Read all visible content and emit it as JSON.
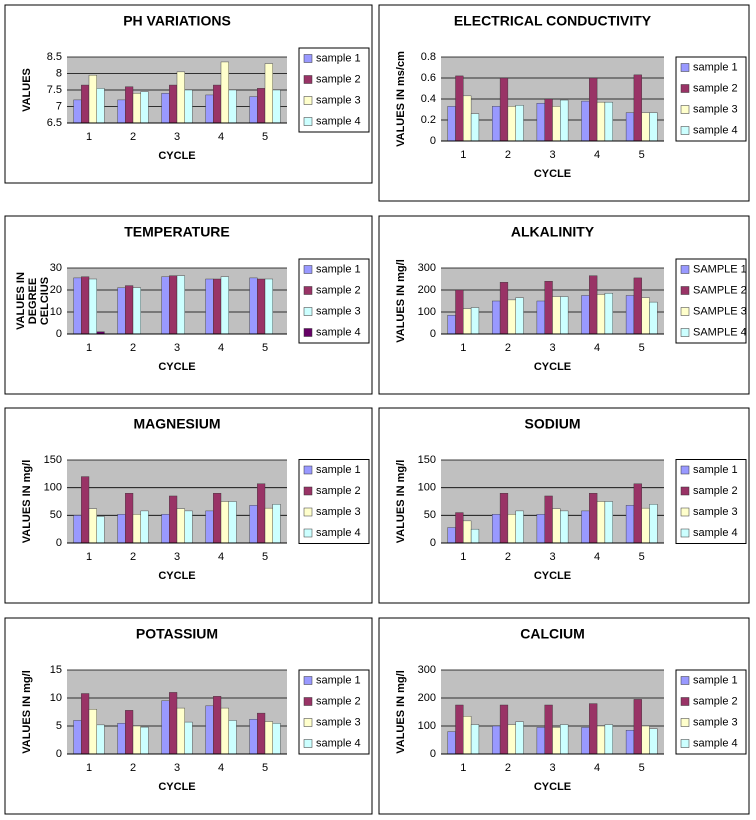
{
  "chart_data": [
    {
      "type": "bar",
      "title": "PH VARIATIONS",
      "ylabel": "VALUES",
      "xlabel": "CYCLE",
      "categories": [
        "1",
        "2",
        "3",
        "4",
        "5"
      ],
      "ylim": [
        6.5,
        8.5
      ],
      "yticks": [
        6.5,
        7,
        7.5,
        8,
        8.5
      ],
      "grid": true,
      "legend": "right",
      "series": [
        {
          "name": "sample 1",
          "color": "#9999ff",
          "values": [
            7.2,
            7.2,
            7.4,
            7.35,
            7.3
          ]
        },
        {
          "name": "sample 2",
          "color": "#993366",
          "values": [
            7.65,
            7.6,
            7.65,
            7.65,
            7.55
          ]
        },
        {
          "name": "sample 3",
          "color": "#ffffcc",
          "values": [
            7.95,
            7.4,
            8.05,
            8.35,
            8.3
          ]
        },
        {
          "name": "sample 4",
          "color": "#ccffff",
          "values": [
            7.55,
            7.45,
            7.5,
            7.5,
            7.5
          ]
        }
      ]
    },
    {
      "type": "bar",
      "title": "ELECTRICAL CONDUCTIVITY",
      "ylabel": "VALUES IN ms/cm",
      "xlabel": "CYCLE",
      "categories": [
        "1",
        "2",
        "3",
        "4",
        "5"
      ],
      "ylim": [
        0,
        0.8
      ],
      "yticks": [
        0,
        0.2,
        0.4,
        0.6,
        0.8
      ],
      "grid": true,
      "legend": "right",
      "series": [
        {
          "name": "sample 1",
          "color": "#9999ff",
          "values": [
            0.33,
            0.33,
            0.36,
            0.38,
            0.27
          ]
        },
        {
          "name": "sample 2",
          "color": "#993366",
          "values": [
            0.62,
            0.6,
            0.4,
            0.6,
            0.63
          ]
        },
        {
          "name": "sample 3",
          "color": "#ffffcc",
          "values": [
            0.43,
            0.33,
            0.33,
            0.37,
            0.27
          ]
        },
        {
          "name": "sample 4",
          "color": "#ccffff",
          "values": [
            0.26,
            0.34,
            0.39,
            0.37,
            0.27
          ]
        }
      ]
    },
    {
      "type": "bar",
      "title": "TEMPERATURE",
      "ylabel": [
        "VALUES IN",
        "DEGREE",
        "CELCIUS"
      ],
      "xlabel": "CYCLE",
      "categories": [
        "1",
        "2",
        "3",
        "4",
        "5"
      ],
      "ylim": [
        0,
        30
      ],
      "yticks": [
        0,
        10,
        20,
        30
      ],
      "grid": true,
      "legend": "right",
      "series": [
        {
          "name": "sample 1",
          "color": "#9999ff",
          "values": [
            25.5,
            21,
            26,
            25,
            25.5
          ]
        },
        {
          "name": "sample 2",
          "color": "#993366",
          "values": [
            26,
            22,
            26.5,
            25,
            25
          ]
        },
        {
          "name": "sample 3",
          "color": "#ccffff",
          "values": [
            25,
            21,
            26.5,
            26,
            25
          ]
        },
        {
          "name": "sample 4",
          "color": "#660066",
          "values": [
            1,
            null,
            null,
            null,
            null
          ]
        }
      ]
    },
    {
      "type": "bar",
      "title": "ALKALINITY",
      "ylabel": "VALUES IN mg/l",
      "xlabel": "CYCLE",
      "categories": [
        "1",
        "2",
        "3",
        "4",
        "5"
      ],
      "ylim": [
        0,
        300
      ],
      "yticks": [
        0,
        100,
        200,
        300
      ],
      "grid": true,
      "legend": "right",
      "series": [
        {
          "name": "SAMPLE 1",
          "color": "#9999ff",
          "values": [
            85,
            150,
            150,
            175,
            175
          ]
        },
        {
          "name": "SAMPLE 2",
          "color": "#993366",
          "values": [
            200,
            235,
            240,
            265,
            255
          ]
        },
        {
          "name": "SAMPLE 3",
          "color": "#ffffcc",
          "values": [
            115,
            155,
            170,
            180,
            165
          ]
        },
        {
          "name": "SAMPLE 4",
          "color": "#ccffff",
          "values": [
            120,
            165,
            170,
            185,
            145
          ]
        }
      ]
    },
    {
      "type": "bar",
      "title": "MAGNESIUM",
      "ylabel": "VALUES IN mg/l",
      "xlabel": "CYCLE",
      "categories": [
        "1",
        "2",
        "3",
        "4",
        "5"
      ],
      "ylim": [
        0,
        150
      ],
      "yticks": [
        0,
        50,
        100,
        150
      ],
      "grid": true,
      "legend": "right",
      "series": [
        {
          "name": "sample 1",
          "color": "#9999ff",
          "values": [
            50,
            52,
            52,
            58,
            68
          ]
        },
        {
          "name": "sample 2",
          "color": "#993366",
          "values": [
            120,
            90,
            85,
            90,
            107
          ]
        },
        {
          "name": "sample 3",
          "color": "#ffffcc",
          "values": [
            62,
            52,
            62,
            75,
            63
          ]
        },
        {
          "name": "sample 4",
          "color": "#ccffff",
          "values": [
            48,
            58,
            58,
            75,
            70
          ]
        }
      ]
    },
    {
      "type": "bar",
      "title": "SODIUM",
      "ylabel": "VALUES IN  mg/l",
      "xlabel": "CYCLE",
      "categories": [
        "1",
        "2",
        "3",
        "4",
        "5"
      ],
      "ylim": [
        0,
        150
      ],
      "yticks": [
        0,
        50,
        100,
        150
      ],
      "grid": true,
      "legend": "right",
      "series": [
        {
          "name": "sample 1",
          "color": "#9999ff",
          "values": [
            28,
            52,
            52,
            58,
            68
          ]
        },
        {
          "name": "sample 2",
          "color": "#993366",
          "values": [
            55,
            90,
            85,
            90,
            107
          ]
        },
        {
          "name": "sample 3",
          "color": "#ffffcc",
          "values": [
            40,
            52,
            62,
            75,
            63
          ]
        },
        {
          "name": "sample 4",
          "color": "#ccffff",
          "values": [
            25,
            58,
            58,
            75,
            70
          ]
        }
      ]
    },
    {
      "type": "bar",
      "title": "POTASSIUM",
      "ylabel": "VALUES IN mg/l",
      "xlabel": "CYCLE",
      "categories": [
        "1",
        "2",
        "3",
        "4",
        "5"
      ],
      "ylim": [
        0,
        15
      ],
      "yticks": [
        0,
        5,
        10,
        15
      ],
      "grid": true,
      "legend": "right",
      "series": [
        {
          "name": "sample 1",
          "color": "#9999ff",
          "values": [
            6,
            5.5,
            9.5,
            8.6,
            6.2
          ]
        },
        {
          "name": "sample 2",
          "color": "#993366",
          "values": [
            10.8,
            7.8,
            11,
            10.3,
            7.3
          ]
        },
        {
          "name": "sample 3",
          "color": "#ffffcc",
          "values": [
            8,
            5,
            8.2,
            8.2,
            5.8
          ]
        },
        {
          "name": "sample 4",
          "color": "#ccffff",
          "values": [
            5.2,
            4.8,
            5.7,
            6,
            5.5
          ]
        }
      ]
    },
    {
      "type": "bar",
      "title": "CALCIUM",
      "ylabel": "VALUES IN mg/l",
      "xlabel": "CYCLE",
      "categories": [
        "1",
        "2",
        "3",
        "4",
        "5"
      ],
      "ylim": [
        0,
        300
      ],
      "yticks": [
        0,
        100,
        200,
        300
      ],
      "grid": true,
      "legend": "right",
      "series": [
        {
          "name": "sample 1",
          "color": "#9999ff",
          "values": [
            80,
            100,
            95,
            95,
            85
          ]
        },
        {
          "name": "sample 2",
          "color": "#993366",
          "values": [
            175,
            175,
            175,
            180,
            195
          ]
        },
        {
          "name": "sample 3",
          "color": "#ffffcc",
          "values": [
            135,
            105,
            95,
            100,
            100
          ]
        },
        {
          "name": "sample 4",
          "color": "#ccffff",
          "values": [
            105,
            115,
            105,
            105,
            90
          ]
        }
      ]
    }
  ]
}
